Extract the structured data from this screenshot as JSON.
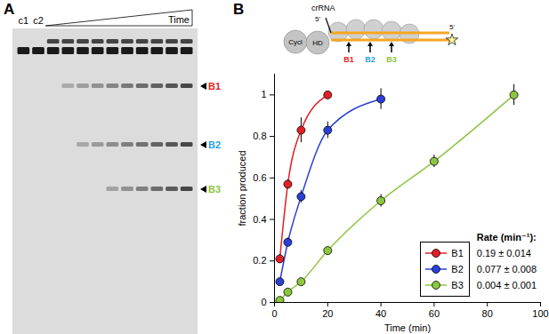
{
  "panel_labels": [
    "A",
    "B"
  ],
  "gel": {
    "lanes": [
      "c1",
      "c2",
      null,
      null,
      null,
      null,
      null,
      null,
      null,
      null,
      null,
      null
    ],
    "gradient_label": "Time",
    "bands": [
      {
        "name": "B1",
        "color": "#e41e26"
      },
      {
        "name": "B2",
        "color": "#2aa0e0"
      },
      {
        "name": "B3",
        "color": "#8cc63f"
      }
    ]
  },
  "schematic": {
    "rna_label": "crRNA",
    "five_prime_left": "5'",
    "five_prime_right": "5'",
    "domains": [
      "Cycl",
      "HD"
    ],
    "sites": [
      "B1",
      "B2",
      "B3"
    ]
  },
  "chart_data": {
    "type": "line",
    "x_label": "Time (min)",
    "y_label": "fraction produced",
    "xlim": [
      0,
      100
    ],
    "xticks": [
      0,
      20,
      40,
      60,
      80,
      100
    ],
    "ylim": [
      0,
      1.1
    ],
    "yticks": [
      0,
      0.2,
      0.4,
      0.6,
      0.8,
      1
    ],
    "legend": "bottom-right",
    "legend_title": "Rate (min⁻¹):",
    "series": [
      {
        "name": "B1",
        "color": "#e41e26",
        "marker": "circle",
        "line_style": "solid",
        "x": [
          2,
          5,
          10,
          20
        ],
        "values": [
          0.21,
          0.57,
          0.83,
          1.0
        ],
        "error": [
          0.02,
          0.02,
          0.06,
          0.01
        ],
        "rate": "0.19 ± 0.014"
      },
      {
        "name": "B2",
        "color": "#2a3fd6",
        "marker": "circle",
        "line_style": "solid",
        "x": [
          2,
          5,
          10,
          20,
          40
        ],
        "values": [
          0.1,
          0.29,
          0.51,
          0.83,
          0.98
        ],
        "error": [
          0.01,
          0.02,
          0.03,
          0.04,
          0.05
        ],
        "rate": "0.077 ± 0.008"
      },
      {
        "name": "B3",
        "color": "#8cc63f",
        "marker": "circle",
        "line_style": "solid",
        "x": [
          2,
          5,
          10,
          20,
          40,
          60,
          90
        ],
        "values": [
          0.01,
          0.05,
          0.1,
          0.25,
          0.49,
          0.68,
          1.0
        ],
        "error": [
          0.005,
          0.01,
          0.01,
          0.01,
          0.03,
          0.03,
          0.05
        ],
        "rate": "0.004 ± 0.001"
      }
    ]
  }
}
